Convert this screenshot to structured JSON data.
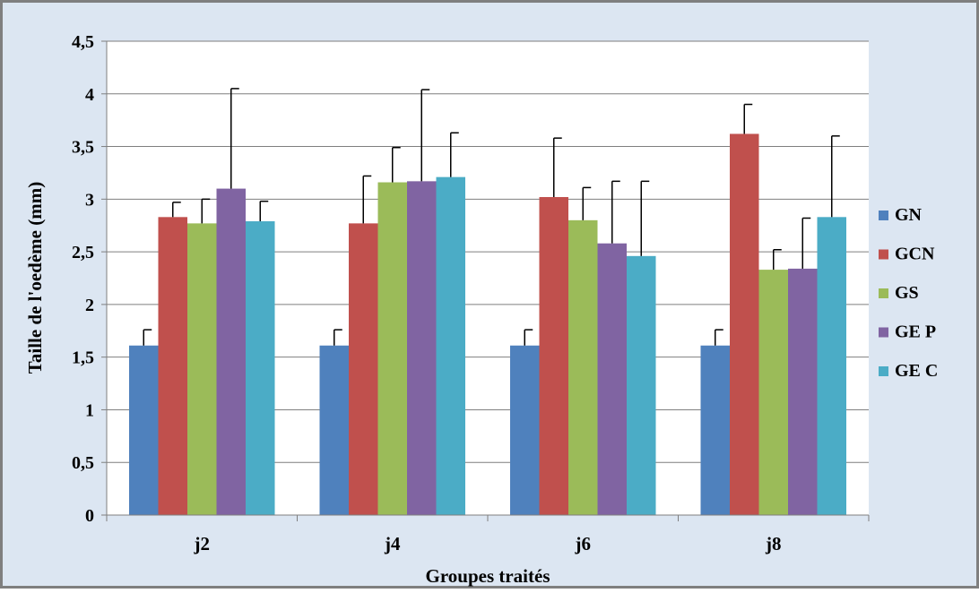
{
  "chart_data": {
    "type": "bar",
    "title": "",
    "xlabel": "Groupes traités",
    "ylabel": "Taille de l'oedème (mm)",
    "ylim": [
      0,
      4.5
    ],
    "yticks": [
      "0",
      "0,5",
      "1",
      "1,5",
      "2",
      "2,5",
      "3",
      "3,5",
      "4",
      "4,5"
    ],
    "ytick_values": [
      0,
      0.5,
      1,
      1.5,
      2,
      2.5,
      3,
      3.5,
      4,
      4.5
    ],
    "categories": [
      "j2",
      "j4",
      "j6",
      "j8"
    ],
    "grid": true,
    "legend_position": "right",
    "error_bars": true,
    "series": [
      {
        "name": "GN",
        "color": "#4F81BD",
        "values": [
          1.61,
          1.61,
          1.61,
          1.61
        ],
        "errors": [
          0.15,
          0.15,
          0.15,
          0.15
        ]
      },
      {
        "name": "GCN",
        "color": "#C0504D",
        "values": [
          2.83,
          2.77,
          3.02,
          3.62
        ],
        "errors": [
          0.14,
          0.45,
          0.56,
          0.28
        ]
      },
      {
        "name": "GS",
        "color": "#9BBB59",
        "values": [
          2.77,
          3.16,
          2.8,
          2.33
        ],
        "errors": [
          0.23,
          0.33,
          0.31,
          0.19
        ]
      },
      {
        "name": "GE P",
        "color": "#8064A2",
        "values": [
          3.1,
          3.17,
          2.58,
          2.34
        ],
        "errors": [
          0.95,
          0.87,
          0.59,
          0.48
        ]
      },
      {
        "name": "GE C",
        "color": "#4BACC6",
        "values": [
          2.79,
          3.21,
          2.46,
          2.83
        ],
        "errors": [
          0.19,
          0.42,
          0.71,
          0.77
        ]
      }
    ]
  },
  "colors": {
    "background": "#DCE6F2",
    "plot_background": "#FFFFFF",
    "frame_border": "#7F7F7F",
    "gridline": "#7F7F7F"
  }
}
